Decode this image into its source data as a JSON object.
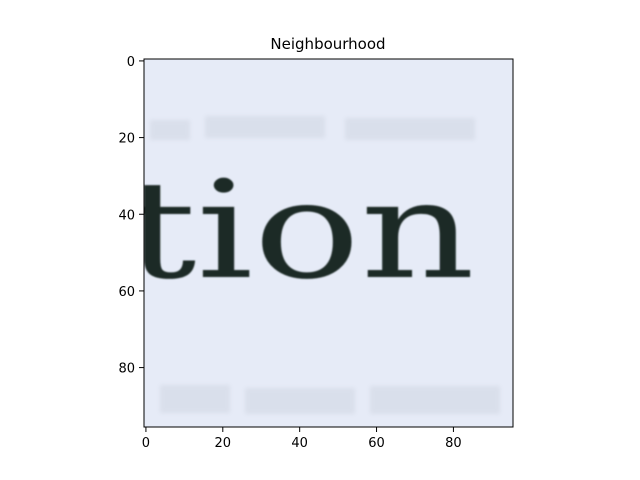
{
  "chart_data": {
    "type": "image",
    "title": "Neighbourhood",
    "xlabel": "",
    "ylabel": "",
    "xlim": [
      -0.5,
      95.5
    ],
    "ylim": [
      95.5,
      -0.5
    ],
    "x_ticks": [
      0,
      20,
      40,
      60,
      80
    ],
    "y_ticks": [
      0,
      20,
      40,
      60,
      80
    ],
    "image_text": "tion",
    "image_background": "#e6ebf7",
    "ink_color": "#1f2a26",
    "grid": false
  }
}
